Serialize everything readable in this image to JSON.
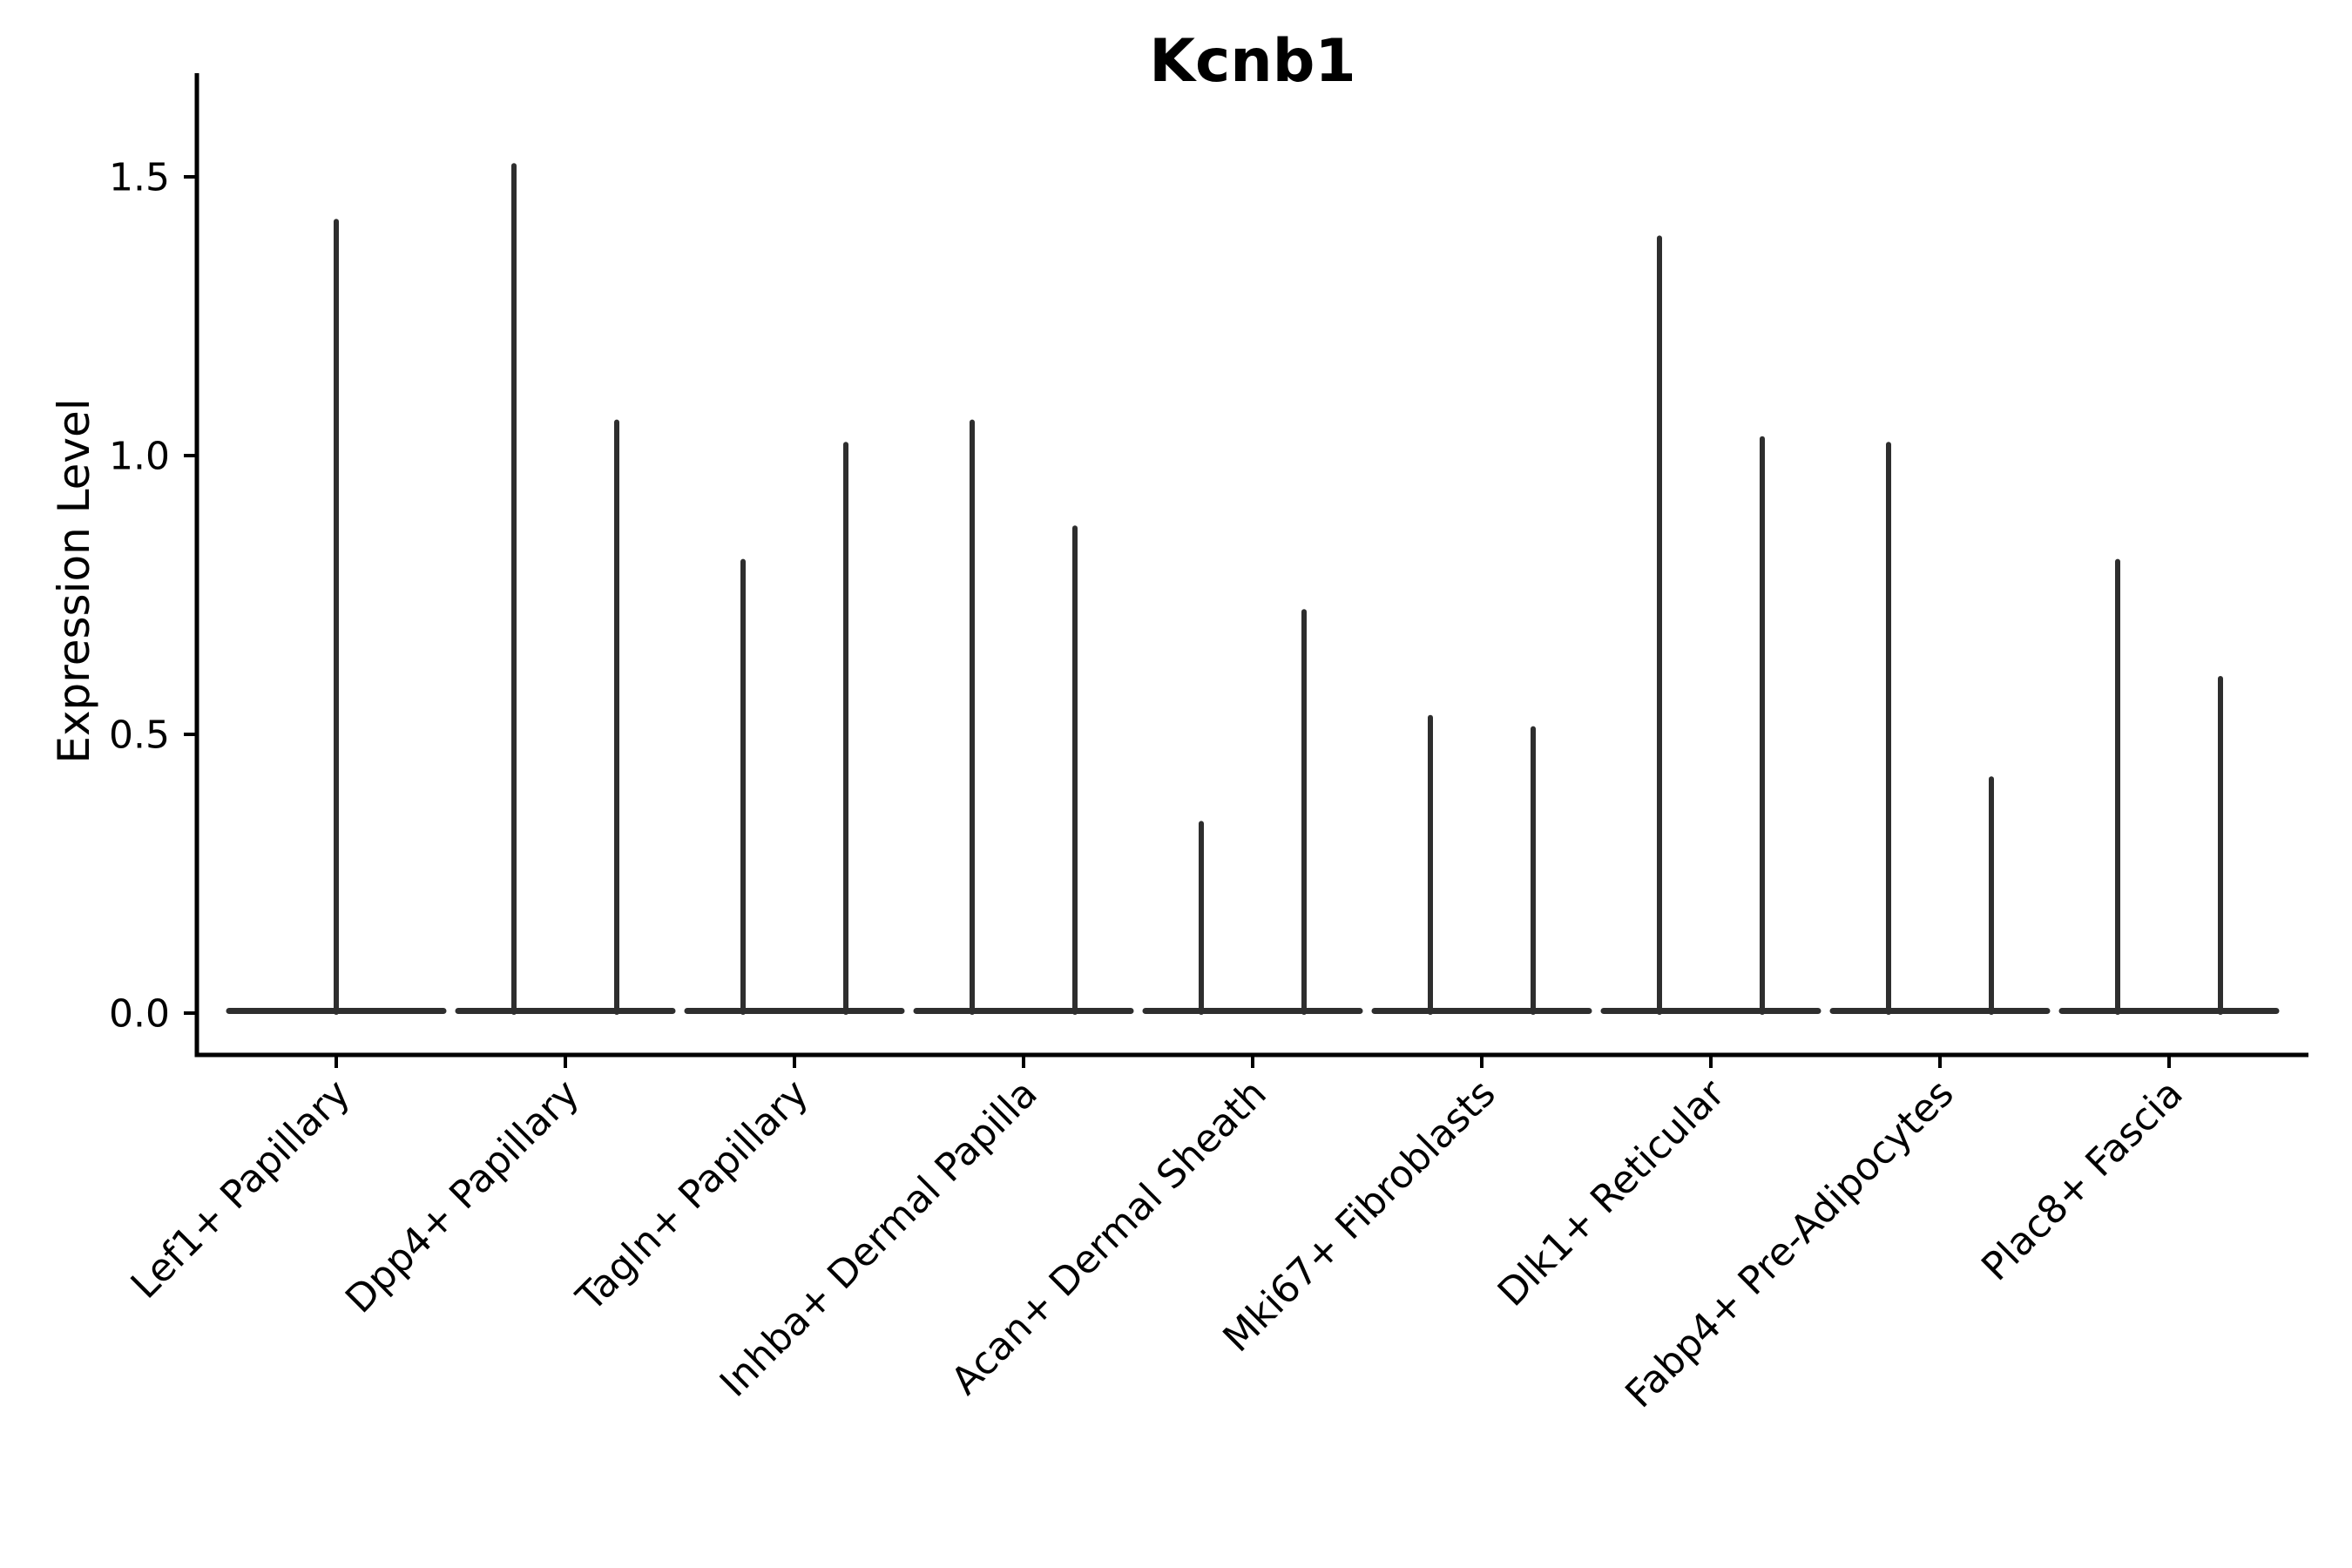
{
  "chart_data": {
    "type": "violin",
    "title": "Kcnb1",
    "ylabel": "Expression Level",
    "xlabel": "",
    "categories": [
      "Lef1+ Papillary",
      "Dpp4+ Papillary",
      "Tagln+ Papillary",
      "Inhba+ Dermal Papilla",
      "Acan+ Dermal Sheath",
      "Mki67+ Fibroblasts",
      "Dlk1+ Reticular",
      "Fabp4+ Pre-Adipocytes",
      "Plac8+ Fascia"
    ],
    "series": [
      {
        "category": "Lef1+ Papillary",
        "spike_maxima": [
          1.42
        ]
      },
      {
        "category": "Dpp4+ Papillary",
        "spike_maxima": [
          1.52,
          1.06
        ]
      },
      {
        "category": "Tagln+ Papillary",
        "spike_maxima": [
          0.81,
          1.02
        ]
      },
      {
        "category": "Inhba+ Dermal Papilla",
        "spike_maxima": [
          1.06,
          0.87
        ]
      },
      {
        "category": "Acan+ Dermal Sheath",
        "spike_maxima": [
          0.34,
          0.72
        ]
      },
      {
        "category": "Mki67+ Fibroblasts",
        "spike_maxima": [
          0.53,
          0.51
        ]
      },
      {
        "category": "Dlk1+ Reticular",
        "spike_maxima": [
          1.39,
          1.03
        ]
      },
      {
        "category": "Fabp4+ Pre-Adipocytes",
        "spike_maxima": [
          1.02,
          0.42
        ]
      },
      {
        "category": "Plac8+ Fascia",
        "spike_maxima": [
          0.81,
          0.6
        ]
      }
    ],
    "violin_shape_note": "zero-inflated violins: wide flat base at 0 expression with thin vertical spike(s) up to the maximum value; categories with two groups show two dodged spikes",
    "y_ticks": {
      "values": [
        0.0,
        0.5,
        1.0,
        1.5
      ],
      "labels": [
        "0.0",
        "0.5",
        "1.0",
        "1.5"
      ]
    },
    "ylim": [
      0,
      1.68
    ],
    "grid": false,
    "legend": null,
    "colors": {
      "violin": "#2e2e2e",
      "axis": "#000000",
      "text": "#000000",
      "background": "#ffffff"
    }
  }
}
